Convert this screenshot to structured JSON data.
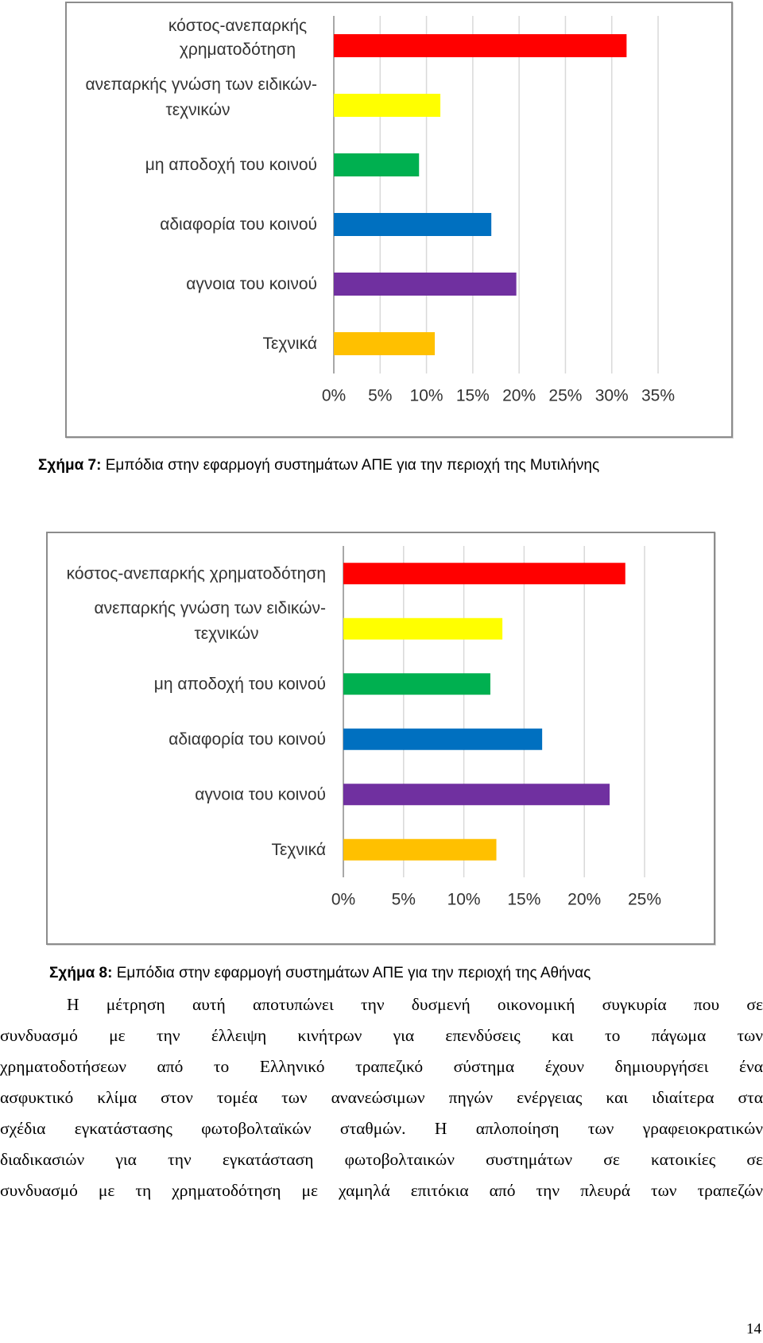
{
  "chart_data": [
    {
      "type": "bar",
      "orientation": "horizontal",
      "categories": [
        "κόστος-ανεπαρκής χρηματοδότηση",
        "ανεπαρκής γνώση των ειδικών-τεχνικών",
        "μη αποδοχή του κοινού",
        "αδιαφορία του κοινού",
        "αγνοια του κοινού",
        "Τεχνικά"
      ],
      "category_lines": [
        [
          "κόστος-ανεπαρκής",
          "χρηματοδότηση"
        ],
        [
          "ανεπαρκής γνώση των ειδικών-",
          "τεχνικών"
        ],
        [
          "μη αποδοχή του κοινού"
        ],
        [
          "αδιαφορία του κοινού"
        ],
        [
          "αγνοια του κοινού"
        ],
        [
          "Τεχνικά"
        ]
      ],
      "values": [
        31.6,
        11.5,
        9.2,
        17.0,
        19.7,
        10.9
      ],
      "colors": [
        "#ff0000",
        "#ffff00",
        "#00b050",
        "#0070c0",
        "#7030a0",
        "#ffc000"
      ],
      "xlim": [
        0,
        35
      ],
      "xticks": [
        "0%",
        "5%",
        "10%",
        "15%",
        "20%",
        "25%",
        "30%",
        "35%"
      ],
      "grid": true,
      "unit": "%"
    },
    {
      "type": "bar",
      "orientation": "horizontal",
      "categories": [
        "κόστος-ανεπαρκής χρηματοδότηση",
        "ανεπαρκής γνώση των ειδικών-τεχνικών",
        "μη αποδοχή του κοινού",
        "αδιαφορία του κοινού",
        "αγνοια του κοινού",
        "Τεχνικά"
      ],
      "category_lines": [
        [
          "κόστος-ανεπαρκής χρηματοδότηση"
        ],
        [
          "ανεπαρκής γνώση των ειδικών-",
          "τεχνικών"
        ],
        [
          "μη αποδοχή του κοινού"
        ],
        [
          "αδιαφορία του κοινού"
        ],
        [
          "αγνοια του κοινού"
        ],
        [
          "Τεχνικά"
        ]
      ],
      "values": [
        23.4,
        13.2,
        12.2,
        16.5,
        22.1,
        12.7
      ],
      "colors": [
        "#ff0000",
        "#ffff00",
        "#00b050",
        "#0070c0",
        "#7030a0",
        "#ffc000"
      ],
      "xlim": [
        0,
        25
      ],
      "xticks": [
        "0%",
        "5%",
        "10%",
        "15%",
        "20%",
        "25%"
      ],
      "grid": true,
      "unit": "%"
    }
  ],
  "captions": [
    {
      "label": "Σχήμα 7:",
      "text": " Εμπόδια στην εφαρμογή συστημάτων ΑΠΕ για την περιοχή της Μυτιλήνης"
    },
    {
      "label": "Σχήμα 8:",
      "text": " Εμπόδια στην εφαρμογή συστημάτων ΑΠΕ για την περιοχή της Αθήνας"
    }
  ],
  "paragraph": {
    "lines": [
      "Η μέτρηση αυτή αποτυπώνει την δυσμενή οικονομική συγκυρία που σε",
      "συνδυασμό με την έλλειψη κινήτρων για επενδύσεις και το πάγωμα των",
      "χρηματοδοτήσεων από το Ελληνικό τραπεζικό σύστημα  έχουν δημιουργήσει ένα",
      "ασφυκτικό κλίμα στον τομέα των ανανεώσιμων πηγών ενέργειας και ιδιαίτερα στα",
      "σχέδια εγκατάστασης φωτοβολταϊκών σταθμών. Η απλοποίηση των γραφειοκρατικών",
      "διαδικασιών για την εγκατάσταση φωτοβολταικών συστημάτων σε κατοικίες σε",
      "συνδυασμό με τη χρηματοδότηση με χαμηλά επιτόκια από την πλευρά των τραπεζών"
    ]
  },
  "page_number": "14"
}
